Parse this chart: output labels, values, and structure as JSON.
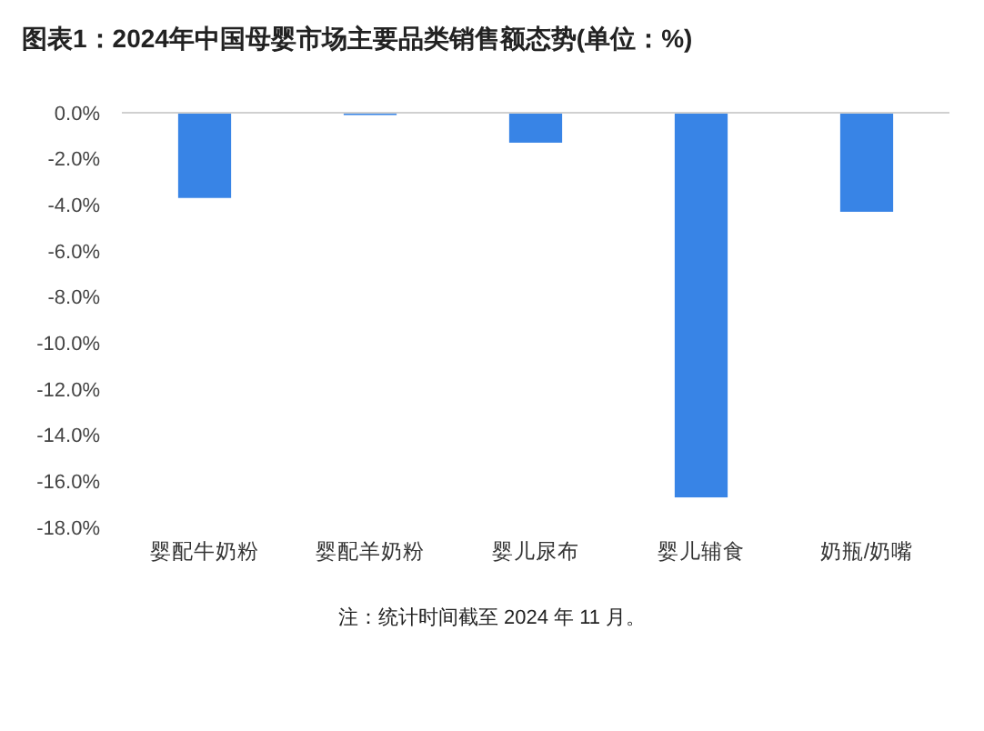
{
  "chart_data": {
    "type": "bar",
    "title": "图表1：2024年中国母婴市场主要品类销售额态势(单位：%)",
    "categories": [
      "婴配牛奶粉",
      "婴配羊奶粉",
      "婴儿尿布",
      "婴儿辅食",
      "奶瓶/奶嘴"
    ],
    "values": [
      -3.7,
      -0.1,
      -1.3,
      -16.7,
      -4.3
    ],
    "color": "#3884e6",
    "ylim": [
      -18,
      0
    ],
    "yticks": [
      {
        "value": 0,
        "label": "0.0%"
      },
      {
        "value": -2,
        "label": "-2.0%"
      },
      {
        "value": -4,
        "label": "-4.0%"
      },
      {
        "value": -6,
        "label": "-6.0%"
      },
      {
        "value": -8,
        "label": "-8.0%"
      },
      {
        "value": -10,
        "label": "-10.0%"
      },
      {
        "value": -12,
        "label": "-12.0%"
      },
      {
        "value": -14,
        "label": "-14.0%"
      },
      {
        "value": -16,
        "label": "-16.0%"
      },
      {
        "value": -18,
        "label": "-18.0%"
      }
    ],
    "annotations": [
      "注：统计时间截至 2024 年 11 月。"
    ]
  }
}
